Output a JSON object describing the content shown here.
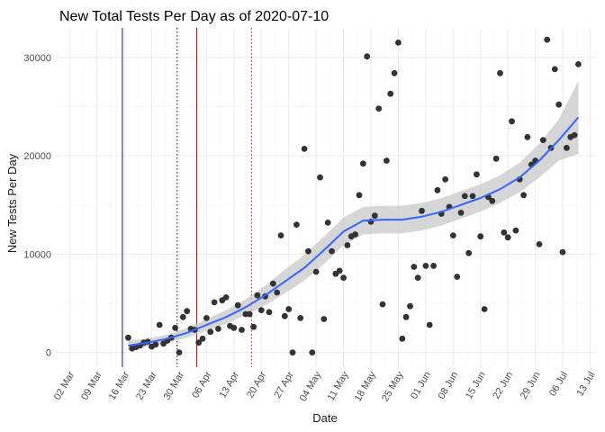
{
  "chart_data": {
    "type": "scatter",
    "title": "New Total Tests Per Day as of 2020-07-10",
    "xlabel": "Date",
    "ylabel": "New Tests Per Day",
    "x_ticks": [
      {
        "label": "02 Mar",
        "day": 0
      },
      {
        "label": "09 Mar",
        "day": 7
      },
      {
        "label": "16 Mar",
        "day": 14
      },
      {
        "label": "23 Mar",
        "day": 21
      },
      {
        "label": "30 Mar",
        "day": 28
      },
      {
        "label": "06 Apr",
        "day": 35
      },
      {
        "label": "13 Apr",
        "day": 42
      },
      {
        "label": "20 Apr",
        "day": 49
      },
      {
        "label": "27 Apr",
        "day": 56
      },
      {
        "label": "04 May",
        "day": 63
      },
      {
        "label": "11 May",
        "day": 70
      },
      {
        "label": "18 May",
        "day": 77
      },
      {
        "label": "25 May",
        "day": 84
      },
      {
        "label": "01 Jun",
        "day": 91
      },
      {
        "label": "08 Jun",
        "day": 98
      },
      {
        "label": "15 Jun",
        "day": 105
      },
      {
        "label": "22 Jun",
        "day": 112
      },
      {
        "label": "29 Jun",
        "day": 119
      },
      {
        "label": "06 Jul",
        "day": 126
      },
      {
        "label": "13 Jul",
        "day": 133
      }
    ],
    "y_ticks": [
      0,
      10000,
      20000,
      30000
    ],
    "xlim_days": [
      -3.5,
      134.5
    ],
    "ylim": [
      -1500,
      33000
    ],
    "day_zero": "2020-03-02",
    "vlines": [
      {
        "day": 13.5,
        "color": "#191970",
        "style": "solid"
      },
      {
        "day": 27.5,
        "color": "#000000",
        "style": "dotted"
      },
      {
        "day": 32.5,
        "color": "#cc0000",
        "style": "solid"
      },
      {
        "day": 46.5,
        "color": "#cc0000",
        "style": "dotted"
      }
    ],
    "points": [
      {
        "x": 15,
        "y": 1500
      },
      {
        "x": 16,
        "y": 400
      },
      {
        "x": 17,
        "y": 550
      },
      {
        "x": 18,
        "y": 700
      },
      {
        "x": 19,
        "y": 1000
      },
      {
        "x": 20,
        "y": 1100
      },
      {
        "x": 21,
        "y": 600
      },
      {
        "x": 22,
        "y": 800
      },
      {
        "x": 23,
        "y": 2800
      },
      {
        "x": 24,
        "y": 900
      },
      {
        "x": 25,
        "y": 1200
      },
      {
        "x": 26,
        "y": 1500
      },
      {
        "x": 27,
        "y": 2500
      },
      {
        "x": 28,
        "y": 0
      },
      {
        "x": 29,
        "y": 3600
      },
      {
        "x": 30,
        "y": 4200
      },
      {
        "x": 31,
        "y": 2400
      },
      {
        "x": 32,
        "y": 2300
      },
      {
        "x": 33,
        "y": 1000
      },
      {
        "x": 34,
        "y": 1400
      },
      {
        "x": 35,
        "y": 3500
      },
      {
        "x": 36,
        "y": 2100
      },
      {
        "x": 37,
        "y": 5100
      },
      {
        "x": 38,
        "y": 2400
      },
      {
        "x": 39,
        "y": 5300
      },
      {
        "x": 40,
        "y": 5600
      },
      {
        "x": 41,
        "y": 2700
      },
      {
        "x": 42,
        "y": 2500
      },
      {
        "x": 43,
        "y": 4800
      },
      {
        "x": 44,
        "y": 2300
      },
      {
        "x": 45,
        "y": 3900
      },
      {
        "x": 46,
        "y": 3900
      },
      {
        "x": 47,
        "y": 2600
      },
      {
        "x": 48,
        "y": 5800
      },
      {
        "x": 49,
        "y": 4300
      },
      {
        "x": 50,
        "y": 5700
      },
      {
        "x": 51,
        "y": 4100
      },
      {
        "x": 52,
        "y": 7000
      },
      {
        "x": 53,
        "y": 6100
      },
      {
        "x": 54,
        "y": 11900
      },
      {
        "x": 55,
        "y": 3700
      },
      {
        "x": 56,
        "y": 4400
      },
      {
        "x": 57,
        "y": 0
      },
      {
        "x": 58,
        "y": 13000
      },
      {
        "x": 59,
        "y": 3500
      },
      {
        "x": 60,
        "y": 20700
      },
      {
        "x": 61,
        "y": 10300
      },
      {
        "x": 62,
        "y": 0
      },
      {
        "x": 63,
        "y": 8200
      },
      {
        "x": 64,
        "y": 17800
      },
      {
        "x": 65,
        "y": 3400
      },
      {
        "x": 66,
        "y": 13200
      },
      {
        "x": 67,
        "y": 10300
      },
      {
        "x": 68,
        "y": 8000
      },
      {
        "x": 69,
        "y": 8300
      },
      {
        "x": 70,
        "y": 7600
      },
      {
        "x": 71,
        "y": 10900
      },
      {
        "x": 72,
        "y": 11800
      },
      {
        "x": 73,
        "y": 12000
      },
      {
        "x": 74,
        "y": 16000
      },
      {
        "x": 75,
        "y": 19200
      },
      {
        "x": 76,
        "y": 30100
      },
      {
        "x": 77,
        "y": 13300
      },
      {
        "x": 78,
        "y": 13900
      },
      {
        "x": 79,
        "y": 24800
      },
      {
        "x": 80,
        "y": 4900
      },
      {
        "x": 81,
        "y": 19500
      },
      {
        "x": 82,
        "y": 26300
      },
      {
        "x": 83,
        "y": 28400
      },
      {
        "x": 84,
        "y": 31500
      },
      {
        "x": 85,
        "y": 1400
      },
      {
        "x": 86,
        "y": 3600
      },
      {
        "x": 87,
        "y": 4700
      },
      {
        "x": 88,
        "y": 8700
      },
      {
        "x": 89,
        "y": 7600
      },
      {
        "x": 90,
        "y": 14400
      },
      {
        "x": 91,
        "y": 8800
      },
      {
        "x": 92,
        "y": 2800
      },
      {
        "x": 93,
        "y": 8800
      },
      {
        "x": 94,
        "y": 16500
      },
      {
        "x": 95,
        "y": 14100
      },
      {
        "x": 96,
        "y": 17600
      },
      {
        "x": 97,
        "y": 14800
      },
      {
        "x": 98,
        "y": 11900
      },
      {
        "x": 99,
        "y": 7700
      },
      {
        "x": 100,
        "y": 14200
      },
      {
        "x": 101,
        "y": 15900
      },
      {
        "x": 102,
        "y": 10100
      },
      {
        "x": 103,
        "y": 15900
      },
      {
        "x": 104,
        "y": 18100
      },
      {
        "x": 105,
        "y": 11800
      },
      {
        "x": 106,
        "y": 4400
      },
      {
        "x": 107,
        "y": 15800
      },
      {
        "x": 108,
        "y": 15400
      },
      {
        "x": 109,
        "y": 19700
      },
      {
        "x": 110,
        "y": 28400
      },
      {
        "x": 111,
        "y": 12200
      },
      {
        "x": 112,
        "y": 11700
      },
      {
        "x": 113,
        "y": 23500
      },
      {
        "x": 114,
        "y": 12400
      },
      {
        "x": 115,
        "y": 17600
      },
      {
        "x": 116,
        "y": 16000
      },
      {
        "x": 117,
        "y": 21900
      },
      {
        "x": 118,
        "y": 19100
      },
      {
        "x": 119,
        "y": 19500
      },
      {
        "x": 120,
        "y": 11000
      },
      {
        "x": 121,
        "y": 21600
      },
      {
        "x": 122,
        "y": 31800
      },
      {
        "x": 123,
        "y": 20800
      },
      {
        "x": 124,
        "y": 28800
      },
      {
        "x": 125,
        "y": 25200
      },
      {
        "x": 126,
        "y": 10200
      },
      {
        "x": 127,
        "y": 20800
      },
      {
        "x": 128,
        "y": 21900
      },
      {
        "x": 129,
        "y": 22100
      },
      {
        "x": 130,
        "y": 29300
      }
    ],
    "smooth": {
      "x": [
        15,
        20,
        25,
        30,
        35,
        40,
        45,
        50,
        55,
        60,
        65,
        70,
        75,
        80,
        85,
        90,
        95,
        100,
        105,
        110,
        115,
        120,
        125,
        130
      ],
      "y": [
        700,
        1000,
        1400,
        2000,
        2800,
        3600,
        4600,
        5800,
        7200,
        8600,
        10400,
        12300,
        13400,
        13500,
        13500,
        13800,
        14300,
        15000,
        15700,
        16600,
        17800,
        19500,
        21600,
        23900
      ],
      "lower": [
        200,
        600,
        1000,
        1500,
        2200,
        2900,
        3800,
        4800,
        6000,
        7300,
        9000,
        10900,
        12000,
        12100,
        12100,
        12400,
        12900,
        13600,
        14300,
        15200,
        16300,
        17800,
        19500,
        20200
      ],
      "upper": [
        1200,
        1400,
        1800,
        2500,
        3400,
        4300,
        5400,
        6800,
        8400,
        9900,
        11800,
        13700,
        14800,
        14900,
        14900,
        15200,
        15700,
        16400,
        17100,
        18000,
        19300,
        21200,
        23700,
        27600
      ]
    },
    "colors": {
      "points": "#333333",
      "smooth_line": "#3366ff",
      "ribbon": "#c8c8c8",
      "grid_major": "#ebebeb",
      "grid_minor": "#f5f5f5"
    }
  }
}
